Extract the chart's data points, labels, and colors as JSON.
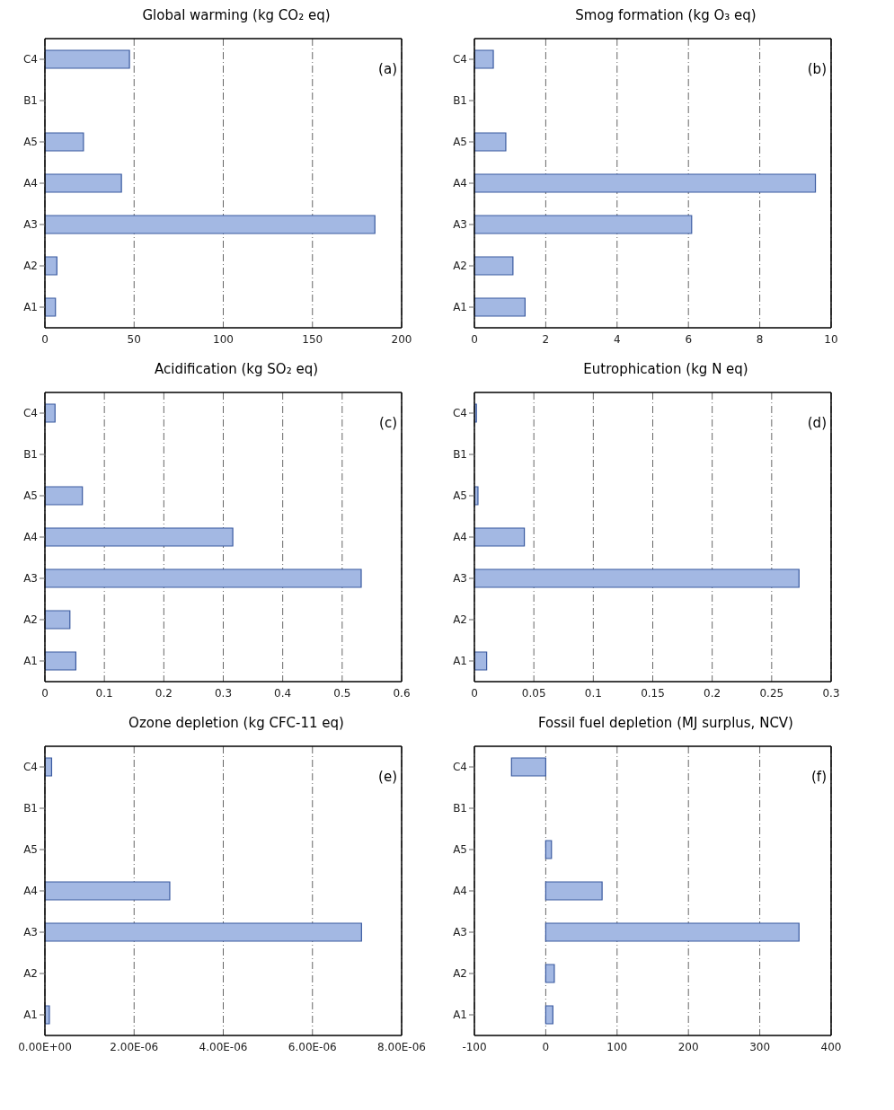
{
  "chart_data": [
    {
      "type": "bar",
      "orientation": "horizontal",
      "title": "Global warming (kg CO₂ eq)",
      "categories": [
        "C4",
        "B1",
        "A5",
        "A4",
        "A3",
        "A2",
        "A1"
      ],
      "values": [
        47.4,
        null,
        21.6,
        42.9,
        185,
        6.7,
        5.9
      ],
      "color": "#a3b8e3",
      "xlim": [
        0,
        200
      ],
      "xticks": [
        0,
        50,
        100,
        150,
        200
      ],
      "grid": "x",
      "annotations": [
        "(a)"
      ]
    },
    {
      "type": "bar",
      "orientation": "horizontal",
      "title": "Smog formation (kg O₃ eq)",
      "categories": [
        "C4",
        "B1",
        "A5",
        "A4",
        "A3",
        "A2",
        "A1"
      ],
      "values": [
        0.53,
        null,
        0.88,
        9.56,
        6.09,
        1.08,
        1.42
      ],
      "color": "#a3b8e3",
      "xlim": [
        0,
        10
      ],
      "xticks": [
        0,
        2,
        4,
        6,
        8,
        10
      ],
      "grid": "x",
      "annotations": [
        "(b)"
      ]
    },
    {
      "type": "bar",
      "orientation": "horizontal",
      "title": "Acidification (kg SO₂ eq)",
      "categories": [
        "C4",
        "B1",
        "A5",
        "A4",
        "A3",
        "A2",
        "A1"
      ],
      "values": [
        0.017,
        null,
        0.063,
        0.316,
        0.532,
        0.042,
        0.052
      ],
      "color": "#a3b8e3",
      "xlim": [
        0,
        0.6
      ],
      "xticks": [
        0,
        0.1,
        0.2,
        0.3,
        0.4,
        0.5,
        0.6
      ],
      "grid": "x",
      "annotations": [
        "(c)"
      ]
    },
    {
      "type": "bar",
      "orientation": "horizontal",
      "title": "Eutrophication (kg N eq)",
      "categories": [
        "C4",
        "B1",
        "A5",
        "A4",
        "A3",
        "A2",
        "A1"
      ],
      "values": [
        0.0017,
        null,
        0.003,
        0.042,
        0.273,
        null,
        0.0103
      ],
      "color": "#a3b8e3",
      "xlim": [
        0,
        0.3
      ],
      "xticks": [
        0,
        0.05,
        0.1,
        0.15,
        0.2,
        0.25,
        0.3
      ],
      "grid": "x",
      "annotations": [
        "(d)"
      ]
    },
    {
      "type": "bar",
      "orientation": "horizontal",
      "title": "Ozone depletion (kg CFC-11 eq)",
      "categories": [
        "C4",
        "B1",
        "A5",
        "A4",
        "A3",
        "A2",
        "A1"
      ],
      "values": [
        1.5e-07,
        null,
        null,
        2.8e-06,
        7.1e-06,
        null,
        1e-07
      ],
      "color": "#a3b8e3",
      "xlim": [
        0,
        8e-06
      ],
      "xticks": [
        {
          "value": 0,
          "label": "0.00E+00"
        },
        {
          "value": 2e-06,
          "label": "2.00E-06"
        },
        {
          "value": 4e-06,
          "label": "4.00E-06"
        },
        {
          "value": 6e-06,
          "label": "6.00E-06"
        },
        {
          "value": 8e-06,
          "label": "8.00E-06"
        }
      ],
      "grid": "x",
      "annotations": [
        "(e)"
      ]
    },
    {
      "type": "bar",
      "orientation": "horizontal",
      "title": "Fossil fuel depletion (MJ surplus, NCV)",
      "categories": [
        "C4",
        "B1",
        "A5",
        "A4",
        "A3",
        "A2",
        "A1"
      ],
      "values": [
        -48,
        null,
        8,
        79,
        355,
        12,
        10
      ],
      "color": "#a3b8e3",
      "xlim": [
        -100,
        400
      ],
      "xticks": [
        -100,
        0,
        100,
        200,
        300,
        400
      ],
      "grid": "x",
      "annotations": [
        "(f)"
      ]
    }
  ]
}
